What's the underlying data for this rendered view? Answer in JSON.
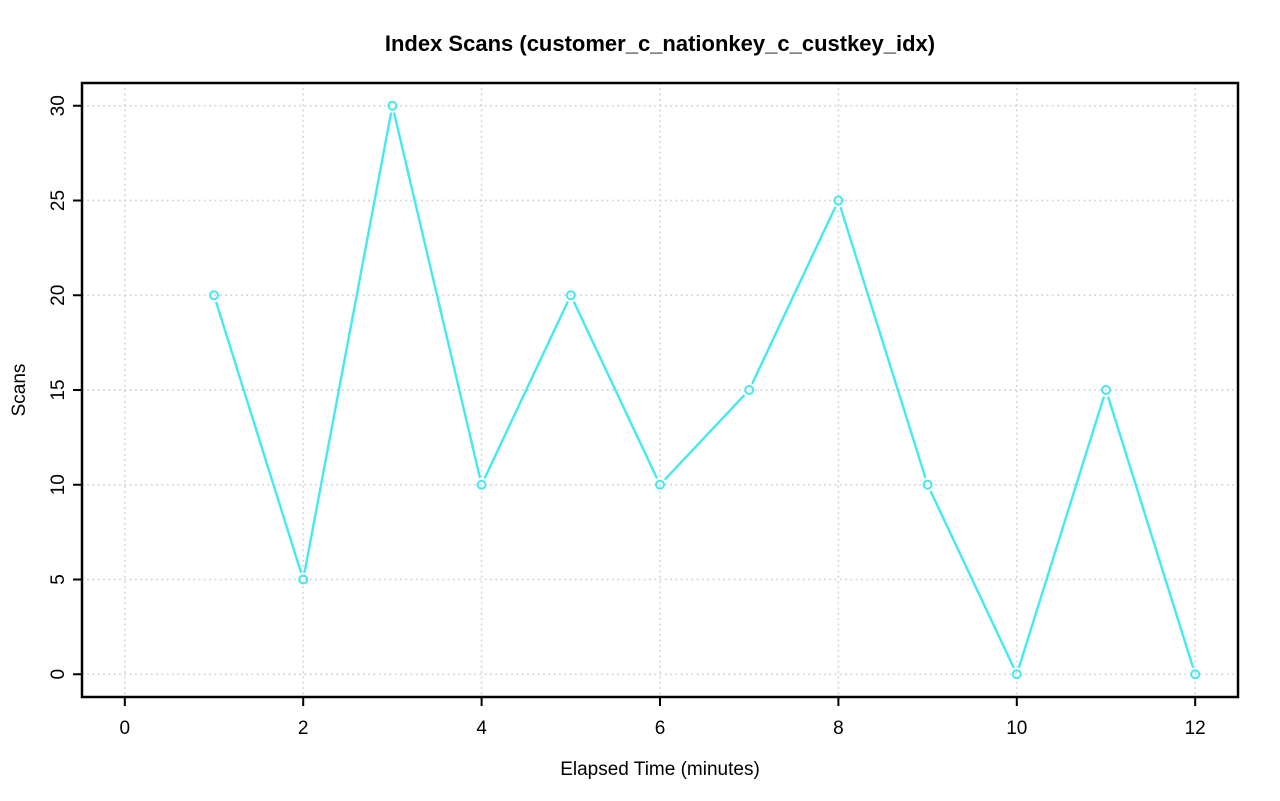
{
  "chart_data": {
    "type": "line",
    "title": "Index Scans (customer_c_nationkey_c_custkey_idx)",
    "xlabel": "Elapsed Time (minutes)",
    "ylabel": "Scans",
    "x": [
      1,
      2,
      3,
      4,
      5,
      6,
      7,
      8,
      9,
      10,
      11,
      12
    ],
    "y": [
      20,
      5,
      30,
      10,
      20,
      10,
      15,
      25,
      10,
      0,
      15,
      0
    ],
    "xticks": [
      0,
      2,
      4,
      6,
      8,
      10,
      12
    ],
    "yticks": [
      0,
      5,
      10,
      15,
      20,
      25,
      30
    ],
    "xlim": [
      0,
      12
    ],
    "ylim": [
      0,
      30
    ],
    "grid": true,
    "grid_style": "dotted",
    "legend_position": "none",
    "marker": "open-circle",
    "series_color": "#45E9F0",
    "grid_color": "#D3D3D3",
    "axis_color": "#000000",
    "background_color": "#FFFFFF"
  }
}
